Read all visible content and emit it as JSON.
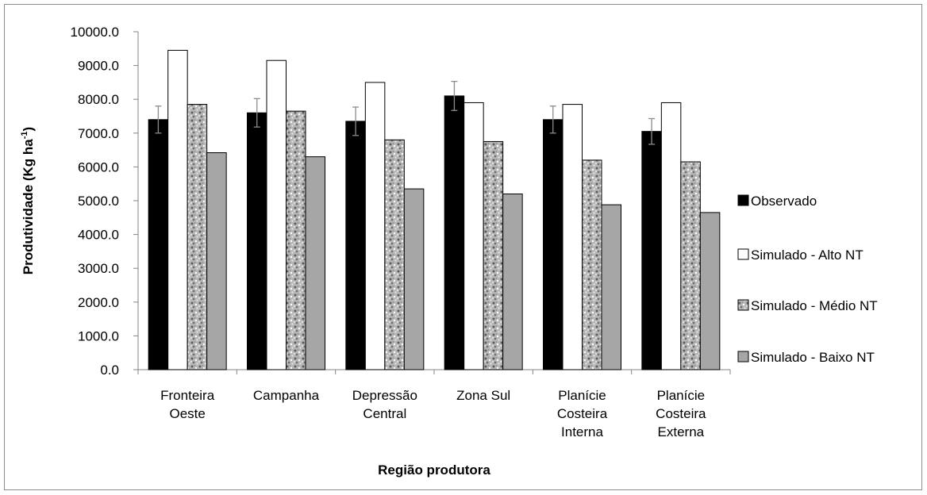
{
  "chart_data": {
    "type": "bar",
    "title": "",
    "xlabel": "Região produtora",
    "ylabel": "Produtividade (Kg ha",
    "ylabel_sup": "-1",
    "ylabel_close": ")",
    "ylim": [
      0,
      10000
    ],
    "yticks": [
      0,
      1000,
      2000,
      3000,
      4000,
      5000,
      6000,
      7000,
      8000,
      9000,
      10000
    ],
    "yticks_labels": [
      "0.0",
      "1000.0",
      "2000.0",
      "3000.0",
      "4000.0",
      "5000.0",
      "6000.0",
      "7000.0",
      "8000.0",
      "9000.0",
      "10000.0"
    ],
    "grid": false,
    "legend_position": "right",
    "categories": [
      [
        "Fronteira",
        "Oeste"
      ],
      [
        "Campanha"
      ],
      [
        "Depressão",
        "Central"
      ],
      [
        "Zona Sul"
      ],
      [
        "Planície",
        "Costeira",
        "Interna"
      ],
      [
        "Planície",
        "Costeira",
        "Externa"
      ]
    ],
    "series": [
      {
        "name": "Observado",
        "values": [
          7400,
          7600,
          7350,
          8100,
          7400,
          7050
        ],
        "error": [
          400,
          420,
          420,
          430,
          400,
          380
        ],
        "color": "#000000",
        "pattern": "solid"
      },
      {
        "name": "Simulado - Alto NT",
        "values": [
          9450,
          9150,
          8500,
          7900,
          7850,
          7900
        ],
        "color": "#ffffff",
        "pattern": "solid"
      },
      {
        "name": "Simulado - Médio NT",
        "values": [
          7850,
          7650,
          6800,
          6750,
          6200,
          6150
        ],
        "color": "#b4b4b4",
        "pattern": "granite"
      },
      {
        "name": "Simulado - Baixo NT",
        "values": [
          6420,
          6300,
          5350,
          5200,
          4880,
          4650
        ],
        "color": "#a6a6a6",
        "pattern": "solid"
      }
    ]
  }
}
